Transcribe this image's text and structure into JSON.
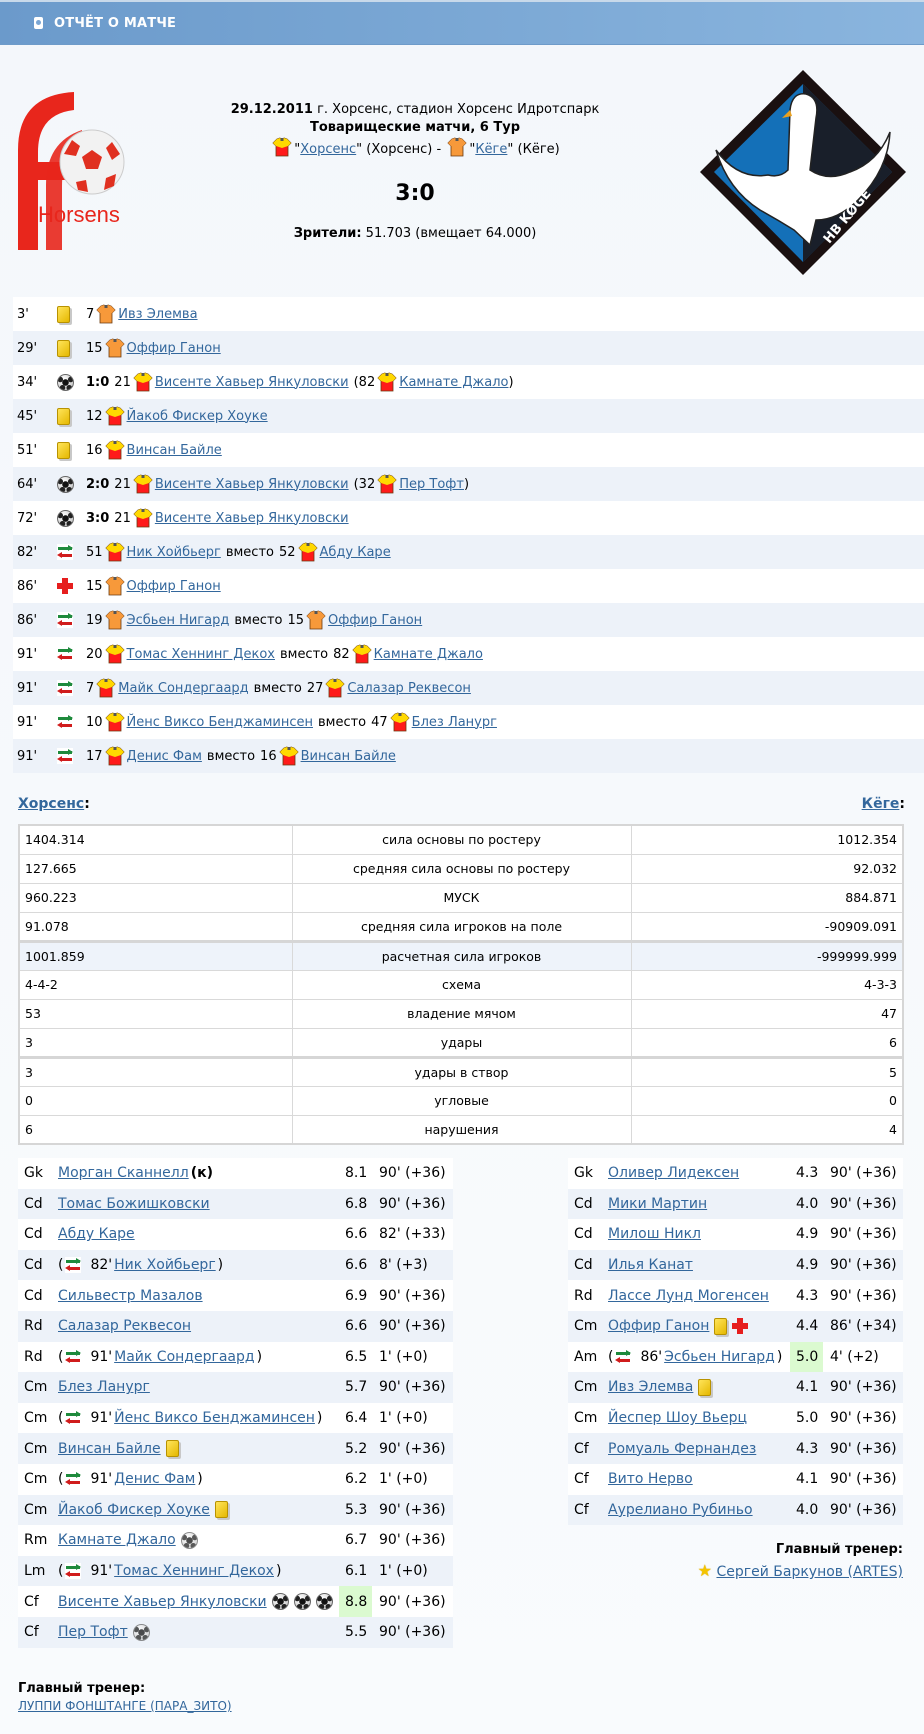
{
  "title": "ОТЧЁТ О МАТЧЕ",
  "match": {
    "date": "29.12.2011",
    "venue": "г. Хорсенс, стадион Хорсенс Идротспарк",
    "tournament": "Товарищеские матчи, 6 Тур",
    "home_team": "Хорсенс",
    "home_city": "(Хорсенс)",
    "away_team": "Кёге",
    "away_city": "(Кёге)",
    "separator": "-",
    "score": "3:0",
    "spectators_label": "Зрители:",
    "spectators_value": "51.703 (вмещает 64.000)",
    "home_logo_text": "Horsens",
    "away_logo_text": "HB KØGE"
  },
  "colors": {
    "link": "#33679c",
    "row_alt": "#edf2f9",
    "title_bar": "#7aa6d4",
    "home_shirt": "#ff1a1a",
    "home_shirt_trim": "#ffd800",
    "away_shirt": "#f7993a",
    "rating_highlight": "#dbfad0"
  },
  "labels": {
    "instead": "вместо",
    "captain": "(к)",
    "head_coach": "Главный тренер:",
    "home_team_label": "Хорсенс",
    "away_team_label": "Кёге",
    "colon": ":"
  },
  "events": [
    {
      "minute": "3'",
      "type": "yellow-card",
      "num": "7",
      "team": "away",
      "player": "Ивз Элемва"
    },
    {
      "minute": "29'",
      "type": "yellow-card",
      "num": "15",
      "team": "away",
      "player": "Оффир Ганон"
    },
    {
      "minute": "34'",
      "type": "goal",
      "score": "1:0",
      "num": "21",
      "team": "home",
      "player": "Висенте Хавьер Янкуловски",
      "assist_num": "82",
      "assist_player": "Камнате Джало"
    },
    {
      "minute": "45'",
      "type": "yellow-card",
      "num": "12",
      "team": "home",
      "player": "Йакоб Фискер Хоуке"
    },
    {
      "minute": "51'",
      "type": "yellow-card",
      "num": "16",
      "team": "home",
      "player": "Винсан Байле"
    },
    {
      "minute": "64'",
      "type": "goal",
      "score": "2:0",
      "num": "21",
      "team": "home",
      "player": "Висенте Хавьер Янкуловски",
      "assist_num": "32",
      "assist_player": "Пер Тофт"
    },
    {
      "minute": "72'",
      "type": "goal",
      "score": "3:0",
      "num": "21",
      "team": "home",
      "player": "Висенте Хавьер Янкуловски"
    },
    {
      "minute": "82'",
      "type": "substitution",
      "num": "51",
      "team": "home",
      "player": "Ник Хойбьерг",
      "out_num": "52",
      "out_player": "Абду Каре"
    },
    {
      "minute": "86'",
      "type": "injury",
      "num": "15",
      "team": "away",
      "player": "Оффир Ганон"
    },
    {
      "minute": "86'",
      "type": "substitution",
      "num": "19",
      "team": "away",
      "player": "Эсбьен Нигард",
      "out_num": "15",
      "out_player": "Оффир Ганон"
    },
    {
      "minute": "91'",
      "type": "substitution",
      "num": "20",
      "team": "home",
      "player": "Томас Хеннинг Декох",
      "out_num": "82",
      "out_player": "Камнате Джало"
    },
    {
      "minute": "91'",
      "type": "substitution",
      "num": "7",
      "team": "home",
      "player": "Майк Сондергаард",
      "out_num": "27",
      "out_player": "Салазар Реквесон"
    },
    {
      "minute": "91'",
      "type": "substitution",
      "num": "10",
      "team": "home",
      "player": "Йенс Виксо Бенджаминсен",
      "out_num": "47",
      "out_player": "Блез Ланург"
    },
    {
      "minute": "91'",
      "type": "substitution",
      "num": "17",
      "team": "home",
      "player": "Денис Фам",
      "out_num": "16",
      "out_player": "Винсан Байле"
    }
  ],
  "stats": [
    {
      "home": "1404.314",
      "label": "сила основы по ростеру",
      "away": "1012.354"
    },
    {
      "home": "127.665",
      "label": "средняя сила основы по ростеру",
      "away": "92.032"
    },
    {
      "home": "960.223",
      "label": "МУСК",
      "away": "884.871"
    },
    {
      "home": "91.078",
      "label": "средняя сила игроков на поле",
      "away": "-90909.091"
    },
    {
      "home": "1001.859",
      "label": "расчетная сила игроков",
      "away": "-999999.999"
    },
    {
      "home": "4-4-2",
      "label": "схема",
      "away": "4-3-3"
    },
    {
      "home": "53",
      "label": "владение мячом",
      "away": "47"
    },
    {
      "home": "3",
      "label": "удары",
      "away": "6"
    },
    {
      "home": "3",
      "label": "удары в створ",
      "away": "5"
    },
    {
      "home": "0",
      "label": "угловые",
      "away": "0"
    },
    {
      "home": "6",
      "label": "нарушения",
      "away": "4"
    }
  ],
  "lineup_home": [
    {
      "pos": "Gk",
      "name": "Морган Сканнелл",
      "captain": true,
      "rating": "8.1",
      "minutes": "90' (+36)"
    },
    {
      "pos": "Cd",
      "name": "Томас Божишковски",
      "rating": "6.8",
      "minutes": "90' (+36)"
    },
    {
      "pos": "Cd",
      "name": "Абду Каре",
      "rating": "6.6",
      "minutes": "82' (+33)"
    },
    {
      "pos": "Cd",
      "sub_minute": "82'",
      "name": "Ник Хойбьерг",
      "rating": "6.6",
      "minutes": "8' (+3)"
    },
    {
      "pos": "Cd",
      "name": "Сильвестр Мазалов",
      "rating": "6.9",
      "minutes": "90' (+36)"
    },
    {
      "pos": "Rd",
      "name": "Салазар Реквесон",
      "rating": "6.6",
      "minutes": "90' (+36)"
    },
    {
      "pos": "Rd",
      "sub_minute": "91'",
      "name": "Майк Сондергаард",
      "rating": "6.5",
      "minutes": "1' (+0)"
    },
    {
      "pos": "Cm",
      "name": "Блез Ланург",
      "rating": "5.7",
      "minutes": "90' (+36)"
    },
    {
      "pos": "Cm",
      "sub_minute": "91'",
      "name": "Йенс Виксо Бенджаминсен",
      "rating": "6.4",
      "minutes": "1' (+0)"
    },
    {
      "pos": "Cm",
      "name": "Винсан Байле",
      "icons": [
        "yellow-card"
      ],
      "rating": "5.2",
      "minutes": "90' (+36)"
    },
    {
      "pos": "Cm",
      "sub_minute": "91'",
      "name": "Денис Фам",
      "rating": "6.2",
      "minutes": "1' (+0)"
    },
    {
      "pos": "Cm",
      "name": "Йакоб Фискер Хоуке",
      "icons": [
        "yellow-card"
      ],
      "rating": "5.3",
      "minutes": "90' (+36)"
    },
    {
      "pos": "Rm",
      "name": "Камнате Джало",
      "icons": [
        "assist-ball"
      ],
      "rating": "6.7",
      "minutes": "90' (+36)"
    },
    {
      "pos": "Lm",
      "sub_minute": "91'",
      "name": "Томас Хеннинг Декох",
      "rating": "6.1",
      "minutes": "1' (+0)"
    },
    {
      "pos": "Cf",
      "name": "Висенте Хавьер Янкуловски",
      "icons": [
        "goal-ball",
        "goal-ball",
        "goal-ball"
      ],
      "rating": "8.8",
      "best": true,
      "minutes": "90' (+36)"
    },
    {
      "pos": "Cf",
      "name": "Пер Тофт",
      "icons": [
        "assist-ball"
      ],
      "rating": "5.5",
      "minutes": "90' (+36)"
    }
  ],
  "lineup_away": [
    {
      "pos": "Gk",
      "name": "Оливер Лидексен",
      "rating": "4.3",
      "minutes": "90' (+36)"
    },
    {
      "pos": "Cd",
      "name": "Мики Мартин",
      "rating": "4.0",
      "minutes": "90' (+36)"
    },
    {
      "pos": "Cd",
      "name": "Милош Никл",
      "rating": "4.9",
      "minutes": "90' (+36)"
    },
    {
      "pos": "Cd",
      "name": "Илья Канат",
      "rating": "4.9",
      "minutes": "90' (+36)"
    },
    {
      "pos": "Rd",
      "name": "Лассе Лунд Могенсен",
      "rating": "4.3",
      "minutes": "90' (+36)"
    },
    {
      "pos": "Cm",
      "name": "Оффир Ганон",
      "icons": [
        "yellow-card",
        "injury"
      ],
      "rating": "4.4",
      "minutes": "86' (+34)"
    },
    {
      "pos": "Am",
      "sub_minute": "86'",
      "name": "Эсбьен Нигард",
      "rating": "5.0",
      "best": true,
      "minutes": "4' (+2)"
    },
    {
      "pos": "Cm",
      "name": "Ивз Элемва",
      "icons": [
        "yellow-card"
      ],
      "rating": "4.1",
      "minutes": "90' (+36)"
    },
    {
      "pos": "Cm",
      "name": "Йеспер Шоу Вьерц",
      "rating": "5.0",
      "minutes": "90' (+36)"
    },
    {
      "pos": "Cf",
      "name": "Ромуаль Фернандез",
      "rating": "4.3",
      "minutes": "90' (+36)"
    },
    {
      "pos": "Cf",
      "name": "Вито Нерво",
      "rating": "4.1",
      "minutes": "90' (+36)"
    },
    {
      "pos": "Cf",
      "name": "Аурелиано Рубиньо",
      "rating": "4.0",
      "minutes": "90' (+36)"
    }
  ],
  "coach_home": {
    "name": "ЛУППИ ФОНШТАНГЕ (ПАРА_ЗИТО)"
  },
  "coach_away": {
    "name": "Сергей Баркунов (ARTES)",
    "icon": "star-icon"
  }
}
